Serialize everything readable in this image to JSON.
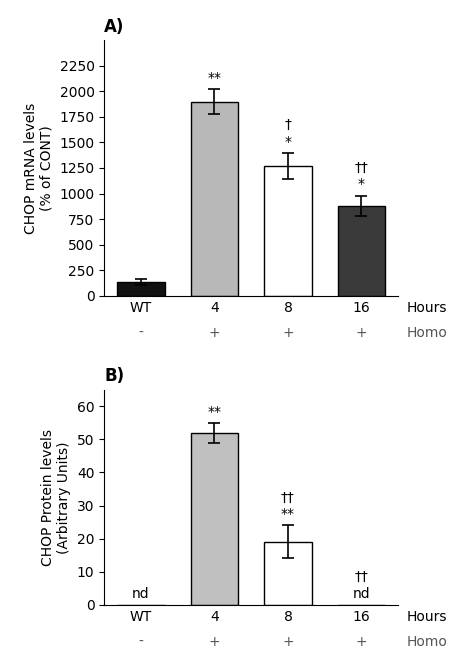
{
  "chart_data": [
    {
      "type": "bar",
      "title": "A)",
      "categories": [
        "WT",
        "4",
        "8",
        "16"
      ],
      "values": [
        130,
        1900,
        1270,
        880
      ],
      "errors": [
        30,
        120,
        130,
        100
      ],
      "colors": [
        "#111111",
        "#b8b8b8",
        "#ffffff",
        "#3a3a3a"
      ],
      "ylabel": "CHOP mRNA levels\n(% of CONT)",
      "xlabel": "Hours",
      "ylim": [
        0,
        2500
      ],
      "yticks": [
        0,
        250,
        500,
        750,
        1000,
        1250,
        1500,
        1750,
        2000,
        2250
      ],
      "row_label": "Homo",
      "row_values": [
        "-",
        "+",
        "+",
        "+"
      ],
      "annotations": [
        {
          "category": "4",
          "texts": [
            "**"
          ]
        },
        {
          "category": "8",
          "texts": [
            "†",
            "*"
          ]
        },
        {
          "category": "16",
          "texts": [
            "††",
            "*"
          ]
        }
      ]
    },
    {
      "type": "bar",
      "title": "B)",
      "categories": [
        "WT",
        "4",
        "8",
        "16"
      ],
      "values": [
        0,
        52,
        19,
        0
      ],
      "errors": [
        0,
        3,
        5,
        0
      ],
      "colors": [
        "#ffffff",
        "#c0c0c0",
        "#ffffff",
        "#ffffff"
      ],
      "ylabel": "CHOP Protein levels\n(Arbitrary Units)",
      "xlabel": "Hours",
      "ylim": [
        0,
        65
      ],
      "yticks": [
        0,
        10,
        20,
        30,
        40,
        50,
        60
      ],
      "row_label": "Homo",
      "row_values": [
        "-",
        "+",
        "+",
        "+"
      ],
      "annotations": [
        {
          "category": "WT",
          "texts": [
            "nd"
          ]
        },
        {
          "category": "4",
          "texts": [
            "**"
          ]
        },
        {
          "category": "8",
          "texts": [
            "††",
            "**"
          ]
        },
        {
          "category": "16",
          "texts": [
            "††",
            "nd"
          ]
        }
      ]
    }
  ]
}
